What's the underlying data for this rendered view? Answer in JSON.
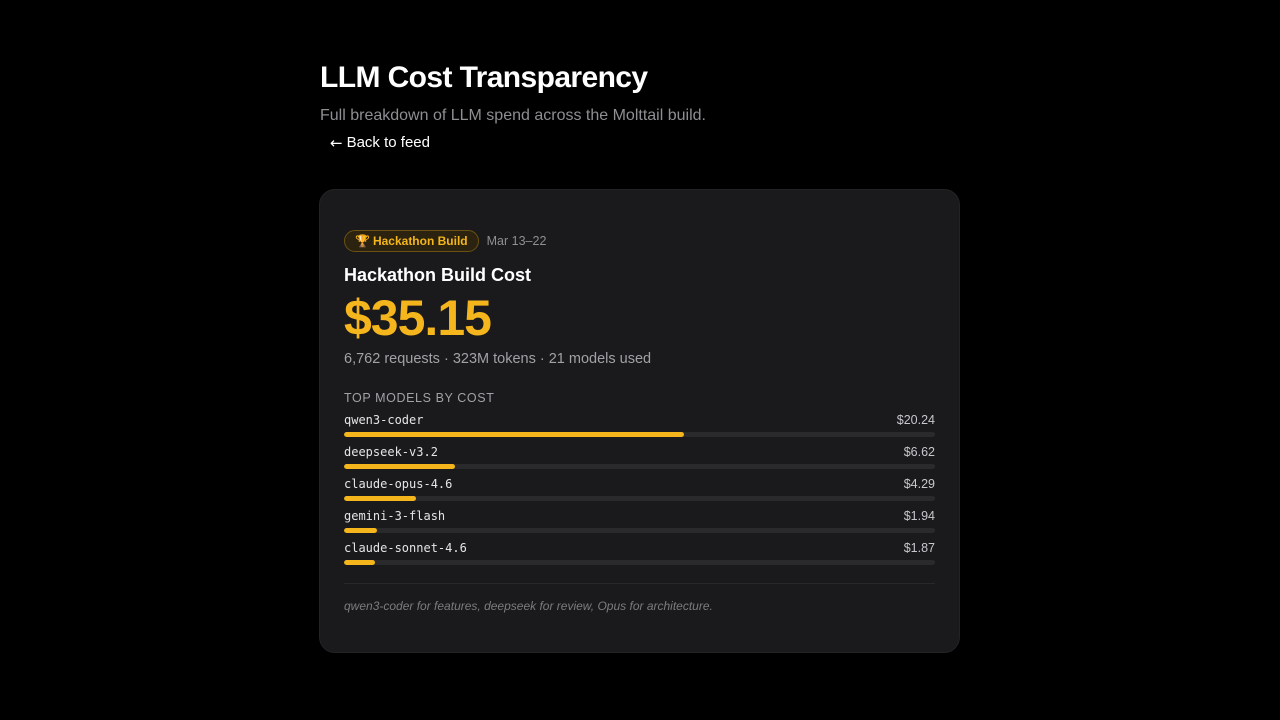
{
  "header": {
    "title": "LLM Cost Transparency",
    "subtitle": "Full breakdown of LLM spend across the Molttail build.",
    "back_arrow": "←",
    "back_label": "Back to feed"
  },
  "card": {
    "badge_icon": "trophy-icon",
    "badge_glyph": "🏆",
    "badge_label": "Hackathon Build",
    "date_range": "Mar 13–22",
    "title": "Hackathon Build Cost",
    "total_cost": "$35.15",
    "stats": "6,762 requests · 323M tokens · 21 models used",
    "section_label": "TOP MODELS BY COST",
    "models": [
      {
        "name": "qwen3-coder",
        "cost": "$20.24",
        "amount": 20.24
      },
      {
        "name": "deepseek-v3.2",
        "cost": "$6.62",
        "amount": 6.62
      },
      {
        "name": "claude-opus-4.6",
        "cost": "$4.29",
        "amount": 4.29
      },
      {
        "name": "gemini-3-flash",
        "cost": "$1.94",
        "amount": 1.94
      },
      {
        "name": "claude-sonnet-4.6",
        "cost": "$1.87",
        "amount": 1.87
      }
    ],
    "footnote": "qwen3-coder for features, deepseek for review, Opus for architecture."
  },
  "colors": {
    "accent": "#f5b51c",
    "background": "#000000",
    "card": "#1a1a1c"
  }
}
